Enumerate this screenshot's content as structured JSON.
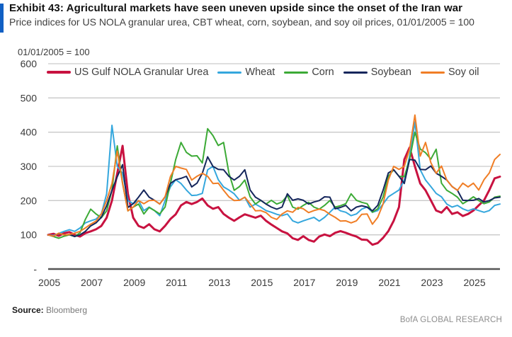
{
  "header": {
    "title": "Exhibit 43: Agricultural markets have seen uneven upside since the onset of the Iran war",
    "subtitle": "Price indices for US NOLA granular urea, CBT wheat, corn, soybean, and soy oil prices, 01/01/2005 = 100",
    "accent_color": "#1160c4"
  },
  "footer": {
    "source_label": "Source:",
    "source_value": "Bloomberg",
    "brand": "BofA GLOBAL RESEARCH"
  },
  "chart_data": {
    "type": "line",
    "title": "Agricultural price indices",
    "axis_note": "01/01/2005 = 100",
    "x_start_year": 2005,
    "x_step_years": 0.25,
    "x_tick_labels": [
      "2005",
      "2007",
      "2009",
      "2011",
      "2013",
      "2015",
      "2017",
      "2019",
      "2021",
      "2023",
      "2025"
    ],
    "ylim": [
      0,
      600
    ],
    "y_ticks": [
      0,
      100,
      200,
      300,
      400,
      500,
      600
    ],
    "y_zero_label": "-",
    "grid": "horizontal",
    "legend_position": "top-inside",
    "gridline_color": "#c9c9c9",
    "axis_color": "#565656",
    "series": [
      {
        "name": "US Gulf NOLA Granular Urea",
        "color": "#c81240",
        "width": 3,
        "values": [
          100,
          103,
          97,
          105,
          108,
          100,
          95,
          105,
          110,
          116,
          126,
          150,
          200,
          280,
          360,
          220,
          150,
          126,
          120,
          131,
          116,
          110,
          126,
          146,
          160,
          186,
          196,
          190,
          196,
          206,
          186,
          176,
          181,
          161,
          150,
          141,
          151,
          160,
          155,
          150,
          156,
          141,
          130,
          120,
          110,
          104,
          90,
          85,
          96,
          85,
          80,
          95,
          101,
          96,
          106,
          111,
          106,
          100,
          95,
          86,
          85,
          71,
          76,
          91,
          111,
          141,
          181,
          320,
          355,
          300,
          250,
          230,
          201,
          171,
          165,
          181,
          161,
          166,
          155,
          161,
          171,
          186,
          201,
          231,
          265,
          270
        ]
      },
      {
        "name": "Wheat",
        "color": "#35a7dd",
        "width": 2,
        "values": [
          100,
          98,
          104,
          110,
          115,
          110,
          120,
          135,
          141,
          146,
          161,
          220,
          420,
          300,
          280,
          200,
          191,
          200,
          171,
          181,
          171,
          156,
          200,
          240,
          261,
          250,
          231,
          215,
          216,
          221,
          290,
          300,
          261,
          240,
          231,
          220,
          201,
          210,
          181,
          190,
          181,
          171,
          166,
          160,
          156,
          161,
          141,
          135,
          141,
          146,
          151,
          140,
          151,
          166,
          181,
          170,
          166,
          156,
          161,
          175,
          181,
          166,
          171,
          190,
          211,
          221,
          231,
          260,
          330,
          430,
          290,
          260,
          241,
          221,
          211,
          190,
          181,
          186,
          176,
          170,
          176,
          171,
          166,
          171,
          186,
          190
        ]
      },
      {
        "name": "Corn",
        "color": "#3caa36",
        "width": 2,
        "values": [
          100,
          95,
          90,
          96,
          100,
          95,
          106,
          145,
          175,
          161,
          150,
          170,
          230,
          360,
          250,
          170,
          181,
          190,
          161,
          180,
          171,
          161,
          181,
          250,
          320,
          370,
          341,
          330,
          331,
          310,
          410,
          390,
          361,
          370,
          281,
          230,
          241,
          260,
          211,
          190,
          201,
          190,
          201,
          190,
          196,
          215,
          181,
          175,
          186,
          195,
          181,
          175,
          186,
          200,
          181,
          185,
          191,
          220,
          201,
          195,
          191,
          166,
          176,
          210,
          271,
          290,
          271,
          270,
          320,
          400,
          351,
          340,
          321,
          350,
          251,
          230,
          221,
          210,
          191,
          200,
          211,
          200,
          191,
          196,
          210,
          213
        ]
      },
      {
        "name": "Soybean",
        "color": "#15265c",
        "width": 2,
        "values": [
          100,
          96,
          104,
          100,
          101,
          95,
          100,
          110,
          126,
          135,
          151,
          185,
          230,
          270,
          305,
          180,
          191,
          210,
          231,
          210,
          201,
          190,
          211,
          250,
          261,
          265,
          271,
          240,
          251,
          280,
          328,
          300,
          291,
          290,
          271,
          260,
          271,
          290,
          231,
          210,
          201,
          190,
          181,
          175,
          181,
          220,
          201,
          205,
          201,
          190,
          196,
          200,
          211,
          210,
          176,
          180,
          186,
          170,
          181,
          185,
          181,
          170,
          186,
          230,
          281,
          290,
          271,
          250,
          320,
          318,
          291,
          290,
          301,
          280,
          271,
          260,
          241,
          230,
          201,
          200,
          201,
          206,
          196,
          200,
          208,
          210
        ]
      },
      {
        "name": "Soy oil",
        "color": "#f07e26",
        "width": 2,
        "values": [
          100,
          96,
          105,
          100,
          101,
          105,
          110,
          120,
          131,
          140,
          161,
          200,
          250,
          345,
          250,
          170,
          181,
          200,
          191,
          200,
          201,
          190,
          211,
          270,
          300,
          295,
          291,
          260,
          271,
          280,
          271,
          250,
          251,
          230,
          211,
          200,
          201,
          210,
          191,
          170,
          171,
          165,
          151,
          145,
          161,
          170,
          166,
          180,
          176,
          165,
          171,
          175,
          171,
          160,
          151,
          140,
          141,
          135,
          141,
          160,
          161,
          131,
          151,
          190,
          260,
          300,
          291,
          300,
          350,
          450,
          330,
          370,
          311,
          280,
          301,
          260,
          241,
          230,
          251,
          240,
          251,
          231,
          261,
          281,
          320,
          335
        ]
      }
    ]
  }
}
